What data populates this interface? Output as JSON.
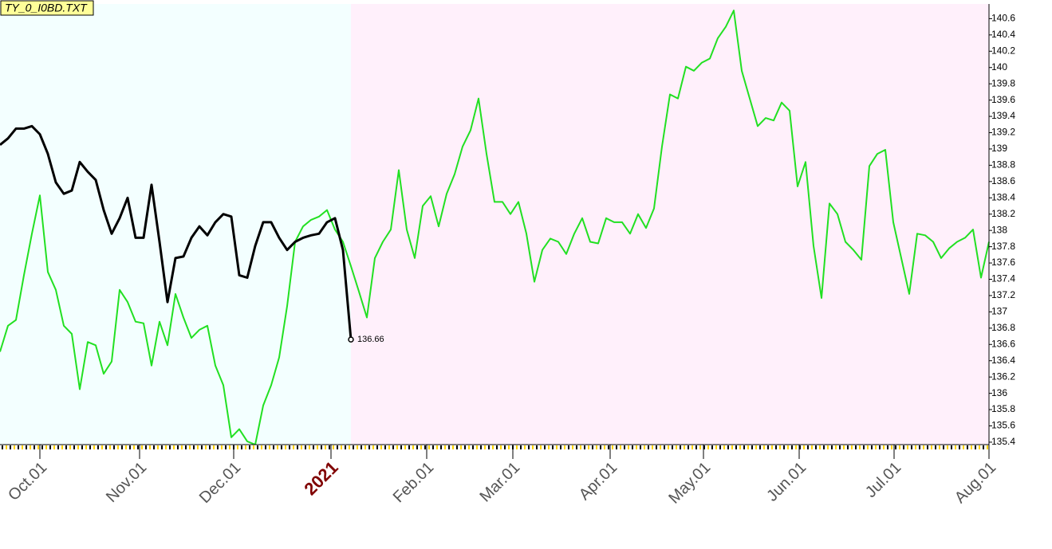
{
  "chart_data": {
    "type": "line",
    "title": "TY_0_I0BD.TXT",
    "xlim": [
      0,
      124.5
    ],
    "xticks": [
      {
        "value": 5,
        "label": "Oct.01"
      },
      {
        "value": 17.5,
        "label": "Nov.01"
      },
      {
        "value": 29.3,
        "label": "Dec.01"
      },
      {
        "value": 41.5,
        "label": "2021",
        "highlight": true
      },
      {
        "value": 53.5,
        "label": "Feb.01"
      },
      {
        "value": 64.3,
        "label": "Mar.01"
      },
      {
        "value": 76.5,
        "label": "Apr.01"
      },
      {
        "value": 88.2,
        "label": "May.01"
      },
      {
        "value": 100.2,
        "label": "Jun.01"
      },
      {
        "value": 112.1,
        "label": "Jul.01"
      },
      {
        "value": 124,
        "label": "Aug.01"
      }
    ],
    "ylim": [
      135.37,
      140.78
    ],
    "yticks": [
      135.4,
      135.6,
      135.8,
      136,
      136.2,
      136.4,
      136.6,
      136.8,
      137,
      137.2,
      137.4,
      137.6,
      137.8,
      138,
      138.2,
      138.4,
      138.6,
      138.8,
      139,
      139.2,
      139.4,
      139.6,
      139.8,
      140,
      140.2,
      140.4,
      140.6
    ],
    "series": [
      {
        "color": "#22e022",
        "width": 2,
        "values": [
          136.51,
          136.83,
          136.9,
          137.45,
          137.96,
          138.43,
          137.49,
          137.27,
          136.83,
          136.73,
          136.05,
          136.63,
          136.59,
          136.24,
          136.39,
          137.27,
          137.12,
          136.88,
          136.86,
          136.34,
          136.88,
          136.59,
          137.22,
          136.93,
          136.68,
          136.78,
          136.83,
          136.34,
          136.1,
          135.46,
          135.56,
          135.41,
          135.37,
          135.85,
          136.1,
          136.44,
          137.07,
          137.86,
          138.05,
          138.13,
          138.17,
          138.25,
          138.01,
          137.86,
          137.56,
          137.25,
          136.93,
          137.66,
          137.86,
          138.01,
          138.74,
          138.01,
          137.66,
          138.3,
          138.42,
          138.05,
          138.45,
          138.69,
          139.03,
          139.23,
          139.62,
          138.94,
          138.35,
          138.35,
          138.2,
          138.35,
          137.96,
          137.37,
          137.76,
          137.9,
          137.86,
          137.71,
          137.96,
          138.15,
          137.86,
          137.84,
          138.15,
          138.1,
          138.1,
          137.96,
          138.2,
          138.03,
          138.27,
          139.03,
          139.67,
          139.62,
          140.01,
          139.96,
          140.06,
          140.11,
          140.36,
          140.5,
          140.7,
          139.96,
          139.62,
          139.28,
          139.38,
          139.35,
          139.57,
          139.47,
          138.54,
          138.84,
          137.81,
          137.17,
          138.33,
          138.2,
          137.86,
          137.76,
          137.64,
          138.79,
          138.94,
          138.99,
          138.1,
          137.66,
          137.22,
          137.96,
          137.94,
          137.86,
          137.66,
          137.78,
          137.86,
          137.91,
          138.01,
          137.42,
          137.86
        ]
      },
      {
        "color": "#000000",
        "width": 3,
        "end_marker": true,
        "values": [
          139.05,
          139.13,
          139.25,
          139.25,
          139.28,
          139.18,
          138.94,
          138.59,
          138.45,
          138.49,
          138.84,
          138.72,
          138.62,
          138.25,
          137.96,
          138.15,
          138.4,
          137.91,
          137.91,
          138.56,
          137.86,
          137.12,
          137.66,
          137.68,
          137.91,
          138.05,
          137.94,
          138.1,
          138.2,
          138.17,
          137.45,
          137.42,
          137.81,
          138.1,
          138.1,
          137.91,
          137.76,
          137.86,
          137.91,
          137.94,
          137.96,
          138.1,
          138.15,
          137.76,
          136.66
        ],
        "value_labels": {
          "44": "136.66"
        }
      }
    ],
    "background_colors": [
      "#f3ffff",
      "#fff0fb"
    ]
  }
}
